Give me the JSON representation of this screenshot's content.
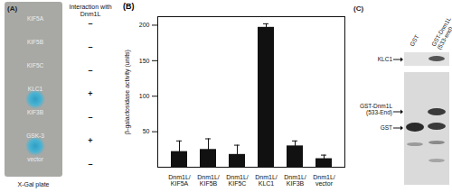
{
  "panel_a": {
    "title": "(A)",
    "header": "Interaction with\nDnm1L",
    "plate_label": "X-Gal plate",
    "rows": [
      {
        "label": "KIF5A",
        "interaction": "–"
      },
      {
        "label": "KIF5B",
        "interaction": "–"
      },
      {
        "label": "KIF5C",
        "interaction": "–"
      },
      {
        "label": "KLC1",
        "interaction": "+"
      },
      {
        "label": "KIF3B",
        "interaction": "–"
      },
      {
        "label": "GSK-3",
        "interaction": "+"
      },
      {
        "label": "vector",
        "interaction": "–"
      }
    ]
  },
  "chart_data": {
    "type": "bar",
    "title": "(B)",
    "y_label": "β-galactosidase activity (units)",
    "categories": [
      "Dnm1L/\nKIF5A",
      "Dnm1L/\nKIF5B",
      "Dnm1L/\nKIF5C",
      "Dnm1L/\nKLC1",
      "Dnm1L/\nKIF3B",
      "Dnm1L/\nvector"
    ],
    "values": [
      22,
      25,
      18,
      197,
      30,
      12
    ],
    "errors": [
      15,
      15,
      13,
      5,
      7,
      5
    ],
    "color": "#111111",
    "ylim": [
      0,
      212
    ],
    "yticks": [
      50,
      100,
      150,
      200
    ]
  },
  "panel_c": {
    "title": "(C)",
    "lanes": [
      "GST",
      "GST-Dnm1L\n(533-end)"
    ],
    "bands": [
      "KLC1",
      "GST-Dnm1L\n(533-End)",
      "GST"
    ]
  }
}
